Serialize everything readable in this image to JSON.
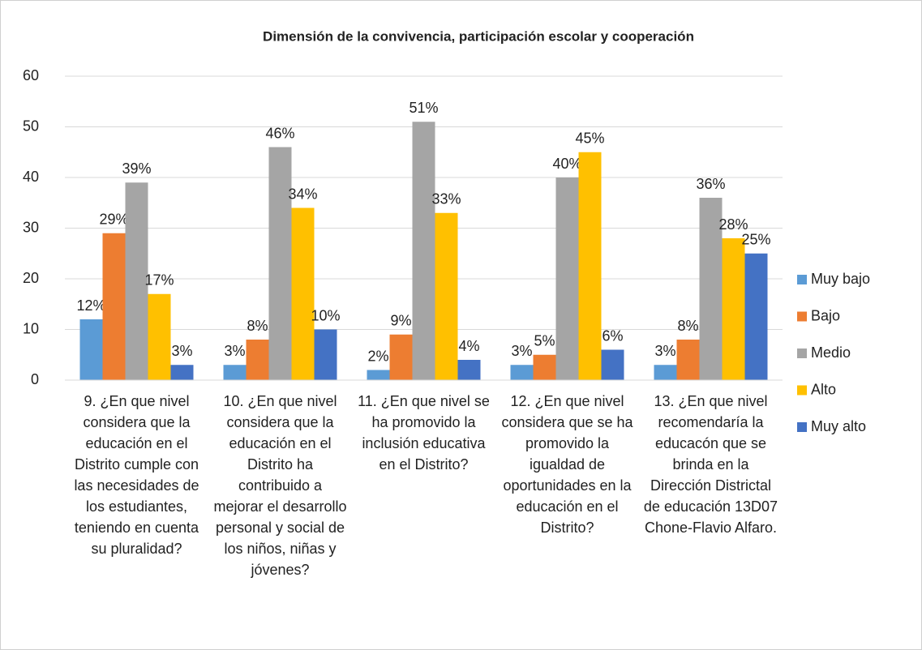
{
  "chart_data": {
    "type": "bar",
    "title": "Dimensión de la convivencia, participación escolar y cooperación",
    "categories": [
      "9. ¿En que nivel considera que la educación en el Distrito cumple con las necesidades de los estudiantes, teniendo en cuenta su pluralidad?",
      "10. ¿En que nivel considera que la educación en el Distrito ha contribuido a mejorar el desarrollo personal y social de los niños, niñas y jóvenes?",
      "11. ¿En que nivel se ha promovido la inclusión educativa en el Distrito?",
      "12. ¿En que nivel considera que se ha promovido la igualdad de oportunidades en la educación en el Distrito?",
      "13. ¿En que nivel recomendaría la educacón que se brinda en la Dirección Districtal de educación 13D07 Chone-Flavio Alfaro."
    ],
    "series": [
      {
        "name": "Muy bajo",
        "color": "#5b9bd5",
        "values": [
          12,
          3,
          2,
          3,
          3
        ],
        "value_labels": [
          "12%",
          "3%",
          "2%",
          "3%",
          "3%"
        ]
      },
      {
        "name": "Bajo",
        "color": "#ed7d31",
        "values": [
          29,
          8,
          9,
          5,
          8
        ],
        "value_labels": [
          "29%",
          "8%",
          "9%",
          "5%",
          "8%"
        ]
      },
      {
        "name": "Medio",
        "color": "#a5a5a5",
        "values": [
          39,
          46,
          51,
          40,
          36
        ],
        "value_labels": [
          "39%",
          "46%",
          "51%",
          "40%",
          "36%"
        ]
      },
      {
        "name": "Alto",
        "color": "#ffc000",
        "values": [
          17,
          34,
          33,
          45,
          28
        ],
        "value_labels": [
          "17%",
          "34%",
          "33%",
          "45%",
          "28%"
        ]
      },
      {
        "name": "Muy alto",
        "color": "#4472c4",
        "values": [
          3,
          10,
          4,
          6,
          25
        ],
        "value_labels": [
          "3%",
          "10%",
          "4%",
          "6%",
          "25%"
        ]
      }
    ],
    "ylim": [
      0,
      60
    ],
    "yticks": [
      0,
      10,
      20,
      30,
      40,
      50,
      60
    ],
    "grid": true,
    "legend": "right"
  }
}
